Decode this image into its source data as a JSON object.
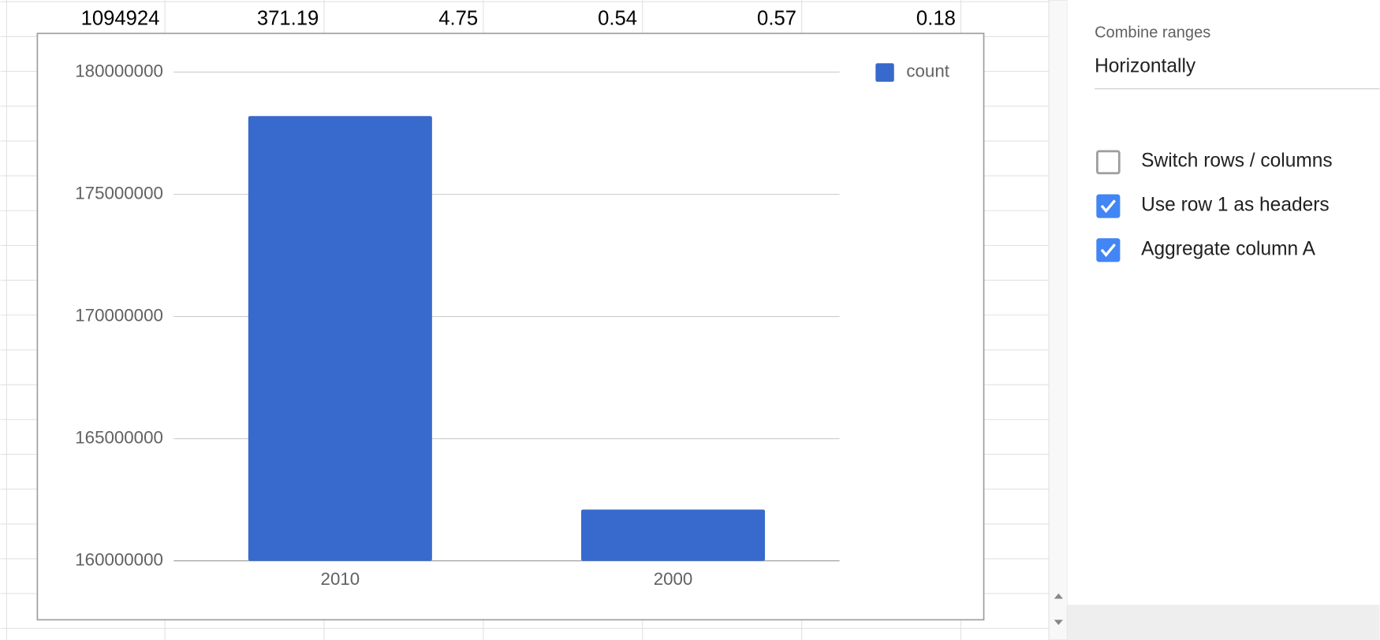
{
  "sheet": {
    "row": [
      1094924,
      371.19,
      4.75,
      0.54,
      0.57,
      0.18
    ]
  },
  "chart_data": {
    "type": "bar",
    "categories": [
      "2010",
      "2000"
    ],
    "series": [
      {
        "name": "count",
        "color": "#3869cc",
        "values": [
          178200000,
          162100000
        ]
      }
    ],
    "ylim": [
      160000000,
      180000000
    ],
    "yticks": [
      160000000,
      165000000,
      170000000,
      175000000,
      180000000
    ],
    "grid": true,
    "legend": "top-right"
  },
  "panel": {
    "combine_label": "Combine ranges",
    "combine_value": "Horizontally",
    "options": [
      {
        "label": "Switch rows / columns",
        "checked": false
      },
      {
        "label": "Use row 1 as headers",
        "checked": true
      },
      {
        "label": "Aggregate column A",
        "checked": true
      }
    ]
  }
}
